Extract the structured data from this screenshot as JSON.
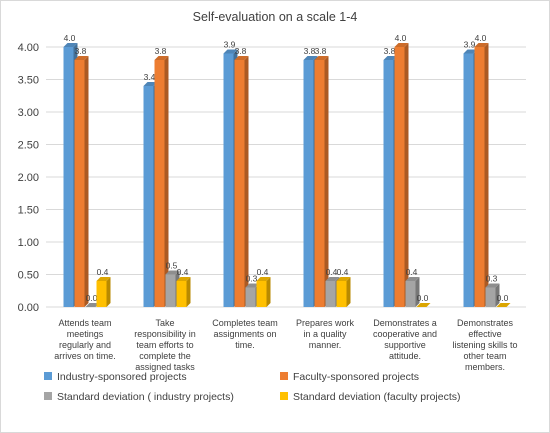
{
  "chart_data": {
    "type": "bar",
    "title": "Self-evaluation on a scale 1-4",
    "xlabel": "",
    "ylabel": "",
    "ylim": [
      0,
      4
    ],
    "yticks": [
      "0.00",
      "0.50",
      "1.00",
      "1.50",
      "2.00",
      "2.50",
      "3.00",
      "3.50",
      "4.00"
    ],
    "grid": true,
    "legend_position": "bottom",
    "categories": [
      "Attends team meetings regularly and arrives on time.",
      "Take responsibility in team efforts to complete the assigned tasks",
      "Completes team assignments on time.",
      "Prepares work in a quality manner.",
      "Demonstrates a cooperative and supportive attitude.",
      "Demonstrates effective listening skills to other team members."
    ],
    "series": [
      {
        "name": "Industry-sponsored projects",
        "color": "#5b9bd5",
        "values": [
          4.0,
          3.4,
          3.9,
          3.8,
          3.8,
          3.9
        ],
        "labels": [
          "4.0",
          "3.4",
          "3.9",
          "3.8",
          "3.8",
          "3.9"
        ]
      },
      {
        "name": "Faculty-sponsored projects",
        "color": "#ed7d31",
        "values": [
          3.8,
          3.8,
          3.8,
          3.8,
          4.0,
          4.0
        ],
        "labels": [
          "3.8",
          "3.8",
          "3.8",
          "3.8",
          "4.0",
          "4.0"
        ]
      },
      {
        "name": "Standard deviation ( industry projects)",
        "color": "#a5a5a5",
        "values": [
          0.0,
          0.5,
          0.3,
          0.4,
          0.4,
          0.3
        ],
        "labels": [
          "0.0",
          "0.5",
          "0.3",
          "0.4",
          "0.4",
          "0.3"
        ]
      },
      {
        "name": "Standard deviation (faculty projects)",
        "color": "#ffc000",
        "values": [
          0.4,
          0.4,
          0.4,
          0.4,
          0.0,
          0.0
        ],
        "labels": [
          "0.4",
          "0.4",
          "0.4",
          "0.4",
          "0.0",
          "0.0"
        ]
      }
    ]
  }
}
